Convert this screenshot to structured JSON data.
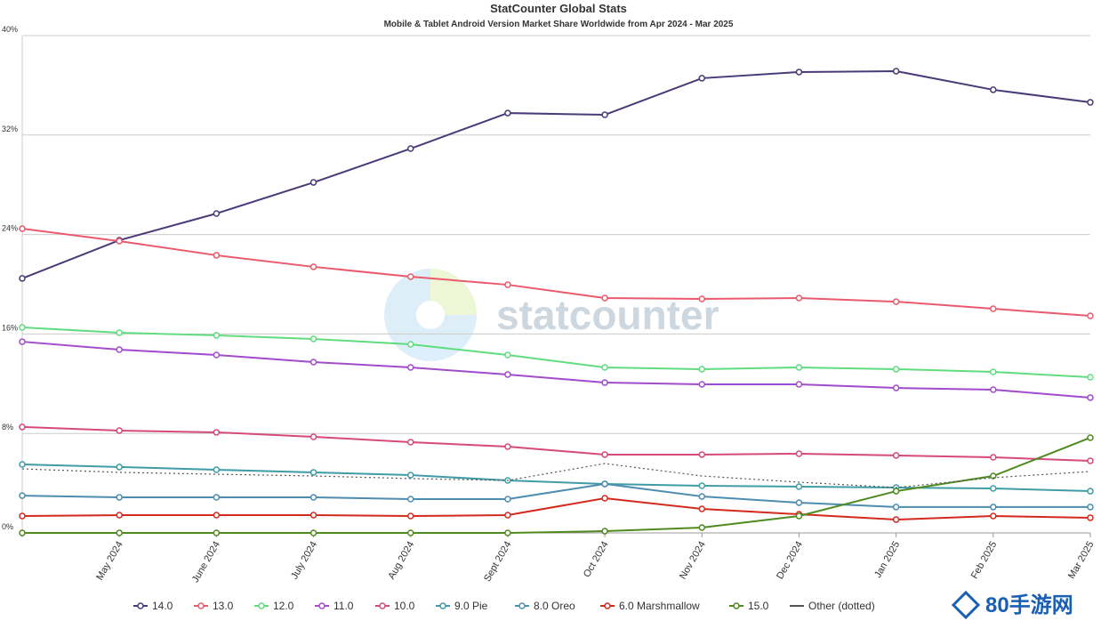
{
  "chart_data": {
    "type": "line",
    "title": "StatCounter Global Stats",
    "subtitle": "Mobile & Tablet Android Version Market Share Worldwide from Apr 2024 - Mar 2025",
    "watermark": "statcounter",
    "corner_logo": "80手游网",
    "categories": [
      null,
      "May 2024",
      "June 2024",
      "July 2024",
      "Aug 2024",
      "Sept 2024",
      "Oct 2024",
      "Nov 2024",
      "Dec 2024",
      "Jan 2025",
      "Feb 2025",
      "Mar 2025"
    ],
    "ylim": [
      0,
      40
    ],
    "yticks": [
      {
        "value": 0,
        "label": "0%"
      },
      {
        "value": 8,
        "label": "8%"
      },
      {
        "value": 16,
        "label": "16%"
      },
      {
        "value": 24,
        "label": "24%"
      },
      {
        "value": 32,
        "label": "32%"
      },
      {
        "value": 40,
        "label": "40%"
      }
    ],
    "grid": true,
    "legend": "bottom",
    "series": [
      {
        "name": "14.0",
        "color": "#4b3a78",
        "marker": true,
        "dotted": false,
        "values": [
          20.47,
          23.54,
          25.69,
          28.19,
          30.91,
          33.77,
          33.63,
          36.57,
          37.07,
          37.14,
          35.64,
          34.63
        ]
      },
      {
        "name": "13.0",
        "color": "#ea5a6c",
        "marker": true,
        "dotted": false,
        "values": [
          24.47,
          23.47,
          22.33,
          21.4,
          20.61,
          19.96,
          18.89,
          18.82,
          18.89,
          18.6,
          18.03,
          17.46
        ]
      },
      {
        "name": "12.0",
        "color": "#5fdc7e",
        "marker": true,
        "dotted": false,
        "values": [
          16.53,
          16.1,
          15.89,
          15.6,
          15.17,
          14.31,
          13.31,
          13.17,
          13.31,
          13.17,
          12.95,
          12.52
        ]
      },
      {
        "name": "11.0",
        "color": "#a14ccb",
        "marker": true,
        "dotted": false,
        "values": [
          15.38,
          14.74,
          14.31,
          13.74,
          13.31,
          12.74,
          12.09,
          11.95,
          11.95,
          11.66,
          11.52,
          10.88
        ]
      },
      {
        "name": "10.0",
        "color": "#d6497d",
        "marker": true,
        "dotted": false,
        "values": [
          8.52,
          8.23,
          8.09,
          7.73,
          7.3,
          6.94,
          6.3,
          6.3,
          6.37,
          6.23,
          6.08,
          5.8
        ]
      },
      {
        "name": "9.0 Pie",
        "color": "#3e9ca6",
        "marker": true,
        "dotted": false,
        "values": [
          5.51,
          5.3,
          5.08,
          4.87,
          4.65,
          4.22,
          3.94,
          3.79,
          3.72,
          3.65,
          3.58,
          3.36
        ]
      },
      {
        "name": "8.0 Oreo",
        "color": "#4d8db0",
        "marker": true,
        "dotted": false,
        "values": [
          3.0,
          2.86,
          2.86,
          2.86,
          2.72,
          2.72,
          3.94,
          2.93,
          2.43,
          2.08,
          2.08,
          2.08
        ]
      },
      {
        "name": "6.0 Marshmallow",
        "color": "#d42a1e",
        "marker": true,
        "dotted": false,
        "values": [
          1.36,
          1.43,
          1.43,
          1.43,
          1.36,
          1.43,
          2.79,
          1.93,
          1.5,
          1.07,
          1.36,
          1.22
        ]
      },
      {
        "name": "15.0",
        "color": "#4f8a1f",
        "marker": true,
        "dotted": false,
        "values": [
          0,
          0,
          0,
          0,
          0,
          0,
          0.14,
          0.43,
          1.36,
          3.36,
          4.58,
          7.66
        ]
      },
      {
        "name": "Other (dotted)",
        "color": "#555555",
        "marker": false,
        "dotted": true,
        "values": [
          5.15,
          4.87,
          4.72,
          4.58,
          4.37,
          4.22,
          5.58,
          4.58,
          4.08,
          3.65,
          4.44,
          4.94
        ]
      }
    ]
  }
}
